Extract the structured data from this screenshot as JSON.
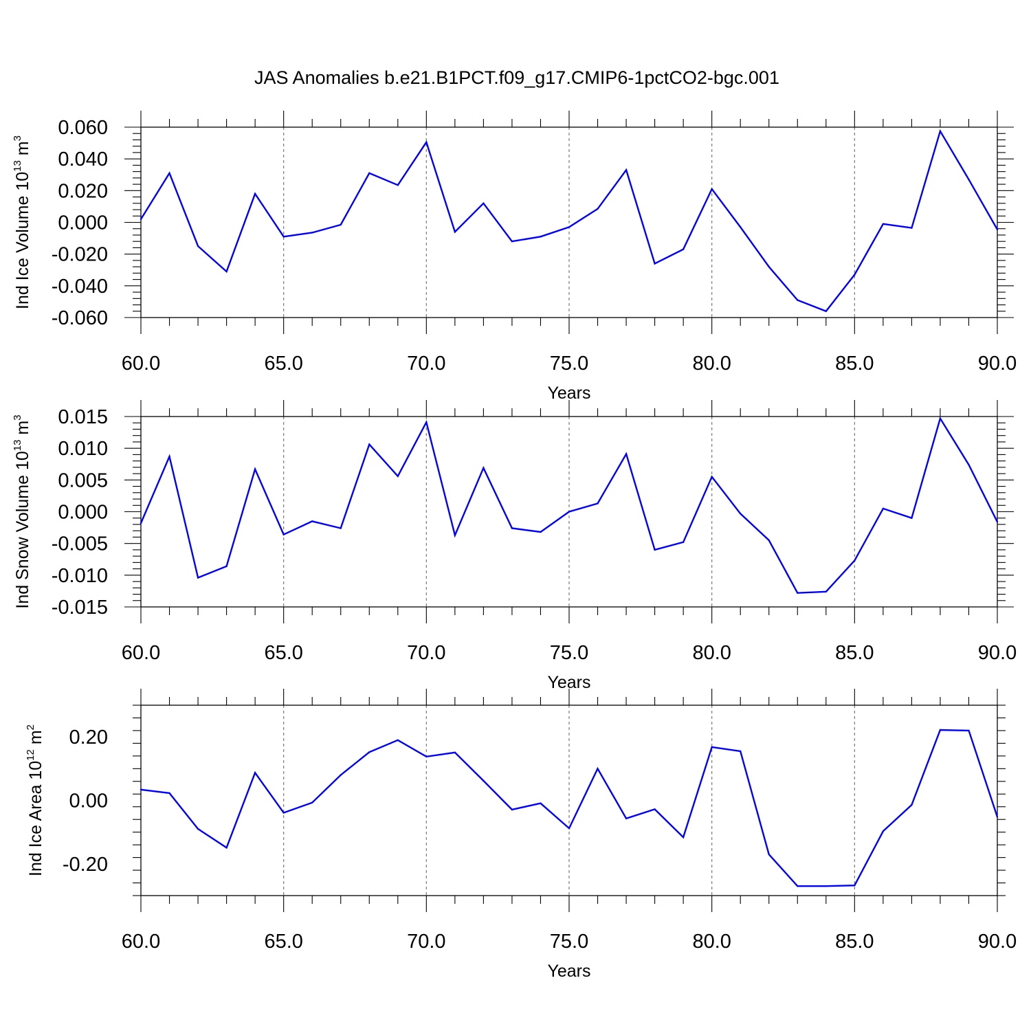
{
  "title": "JAS Anomalies b.e21.B1PCT.f09_g17.CMIP6-1pctCO2-bgc.001",
  "line_color": "#0000ff",
  "chart_data": [
    {
      "type": "line",
      "xlabel": "Years",
      "ylabel": {
        "main": "Ind Ice Volume 10",
        "exp": "13",
        "unit": " m",
        "unit_exp": "3"
      },
      "xlim": [
        60,
        90
      ],
      "ylim": [
        -0.06,
        0.06
      ],
      "x_ticks": [
        "60.0",
        "65.0",
        "70.0",
        "75.0",
        "80.0",
        "85.0",
        "90.0"
      ],
      "y_ticks": [
        {
          "v": 0.06,
          "label": "0.060"
        },
        {
          "v": 0.04,
          "label": "0.040"
        },
        {
          "v": 0.02,
          "label": "0.020"
        },
        {
          "v": 0.0,
          "label": "0.000"
        },
        {
          "v": -0.02,
          "label": "-0.020"
        },
        {
          "v": -0.04,
          "label": "-0.040"
        },
        {
          "v": -0.06,
          "label": "-0.060"
        }
      ],
      "grid": "vertical dashed at major x ticks",
      "x": [
        60,
        61,
        62,
        63,
        64,
        65,
        66,
        67,
        68,
        69,
        70,
        71,
        72,
        73,
        74,
        75,
        76,
        77,
        78,
        79,
        80,
        81,
        82,
        83,
        84,
        85,
        86,
        87,
        88,
        89,
        90
      ],
      "values": [
        0.002,
        0.031,
        -0.015,
        -0.031,
        0.018,
        -0.009,
        -0.0065,
        -0.0015,
        0.031,
        0.0235,
        0.0505,
        -0.006,
        0.012,
        -0.012,
        -0.009,
        -0.003,
        0.0085,
        0.033,
        -0.026,
        -0.017,
        0.021,
        -0.003,
        -0.028,
        -0.049,
        -0.056,
        -0.033,
        -0.001,
        -0.0035,
        0.0575,
        0.027,
        -0.0045
      ]
    },
    {
      "type": "line",
      "xlabel": "Years",
      "ylabel": {
        "main": "Ind Snow Volume 10",
        "exp": "13",
        "unit": " m",
        "unit_exp": "3"
      },
      "xlim": [
        60,
        90
      ],
      "ylim": [
        -0.015,
        0.015
      ],
      "x_ticks": [
        "60.0",
        "65.0",
        "70.0",
        "75.0",
        "80.0",
        "85.0",
        "90.0"
      ],
      "y_ticks": [
        {
          "v": 0.015,
          "label": "0.015"
        },
        {
          "v": 0.01,
          "label": "0.010"
        },
        {
          "v": 0.005,
          "label": "0.005"
        },
        {
          "v": 0.0,
          "label": "0.000"
        },
        {
          "v": -0.005,
          "label": "-0.005"
        },
        {
          "v": -0.01,
          "label": "-0.010"
        },
        {
          "v": -0.015,
          "label": "-0.015"
        }
      ],
      "grid": "vertical dashed at major x ticks",
      "x": [
        60,
        61,
        62,
        63,
        64,
        65,
        66,
        67,
        68,
        69,
        70,
        71,
        72,
        73,
        74,
        75,
        76,
        77,
        78,
        79,
        80,
        81,
        82,
        83,
        84,
        85,
        86,
        87,
        88,
        89,
        90
      ],
      "values": [
        -0.0018,
        0.0087,
        -0.0104,
        -0.0086,
        0.0067,
        -0.0036,
        -0.0015,
        -0.0026,
        0.0106,
        0.0056,
        0.0141,
        -0.0037,
        0.0069,
        -0.0026,
        -0.0032,
        0.0,
        0.0013,
        0.0091,
        -0.006,
        -0.0048,
        0.0055,
        -0.0003,
        -0.0045,
        -0.0128,
        -0.0126,
        -0.0077,
        0.0005,
        -0.001,
        0.0147,
        0.0074,
        -0.0016
      ]
    },
    {
      "type": "line",
      "xlabel": "Years",
      "ylabel": {
        "main": "Ind Ice Area 10",
        "exp": "12",
        "unit": " m",
        "unit_exp": "2"
      },
      "xlim": [
        60,
        90
      ],
      "ylim": [
        -0.3,
        0.3
      ],
      "x_ticks": [
        "60.0",
        "65.0",
        "70.0",
        "75.0",
        "80.0",
        "85.0",
        "90.0"
      ],
      "y_ticks": [
        {
          "v": 0.2,
          "label": "0.20"
        },
        {
          "v": 0.0,
          "label": "0.00"
        },
        {
          "v": -0.2,
          "label": "-0.20"
        }
      ],
      "grid": "vertical dashed at major x ticks",
      "x": [
        60,
        61,
        62,
        63,
        64,
        65,
        66,
        67,
        68,
        69,
        70,
        71,
        72,
        73,
        74,
        75,
        76,
        77,
        78,
        79,
        80,
        81,
        82,
        83,
        84,
        85,
        86,
        87,
        88,
        89,
        90
      ],
      "values": [
        0.034,
        0.023,
        -0.09,
        -0.149,
        0.087,
        -0.039,
        -0.007,
        0.08,
        0.152,
        0.19,
        0.138,
        0.151,
        0.062,
        -0.029,
        -0.009,
        -0.088,
        0.1,
        -0.057,
        -0.028,
        -0.116,
        0.168,
        0.155,
        -0.17,
        -0.27,
        -0.27,
        -0.268,
        -0.097,
        -0.014,
        0.222,
        0.22,
        -0.052
      ]
    }
  ]
}
